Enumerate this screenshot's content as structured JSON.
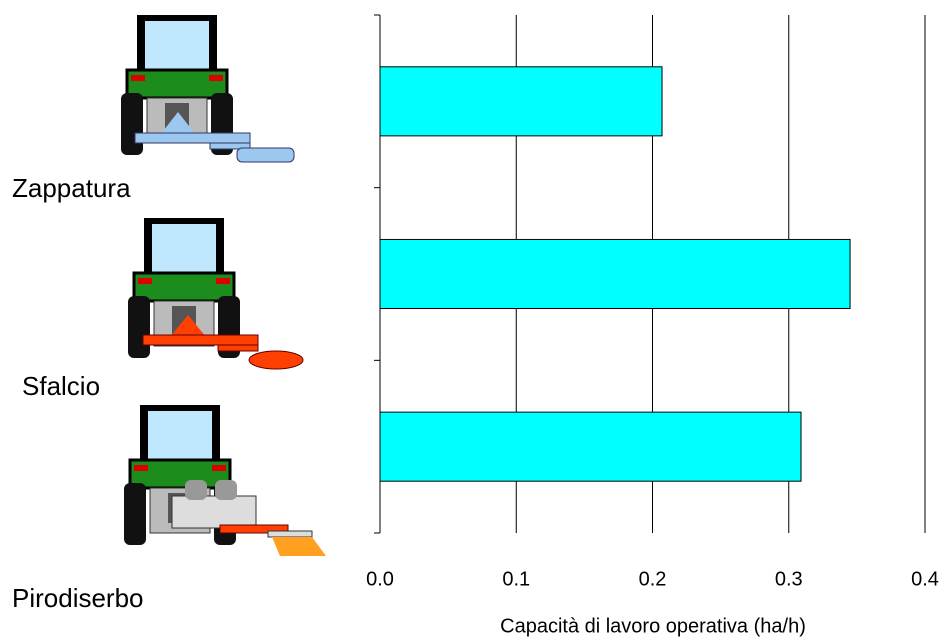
{
  "chart_data": {
    "type": "barh",
    "categories": [
      "Zappatura",
      "Sfalcio",
      "Pirodiserbo"
    ],
    "values": [
      0.207,
      0.345,
      0.309
    ],
    "color": "#00ffff",
    "xlabel": "Capacità di lavoro operativa (ha/h)",
    "xlim": [
      0,
      0.4
    ],
    "xticks": [
      {
        "value": 0,
        "label": "0.0"
      },
      0.1,
      0.2,
      0.3,
      0.4
    ],
    "grid": true
  }
}
